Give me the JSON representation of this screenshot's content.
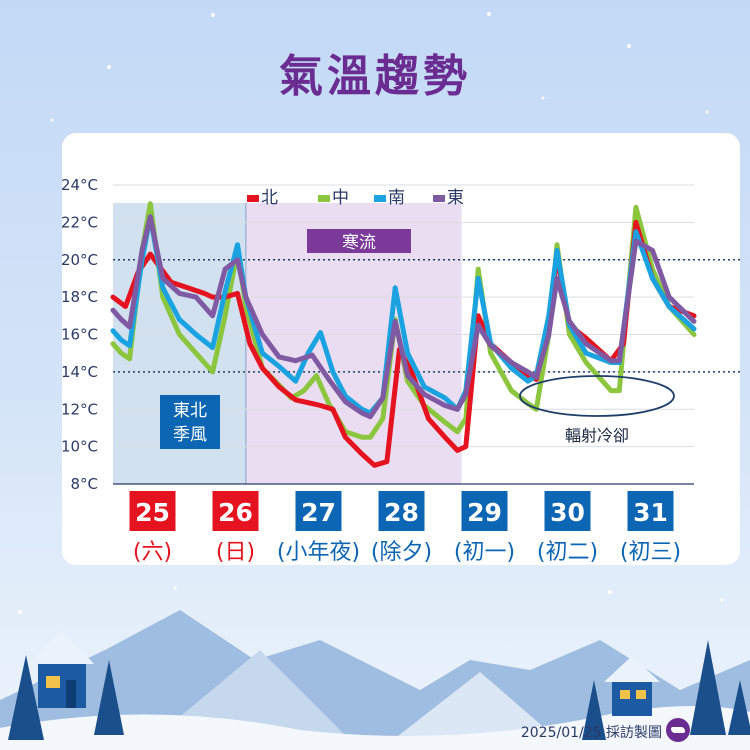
{
  "title": "氣溫趨勢",
  "credit": "2025/01/25 採訪製圖",
  "colors": {
    "north": "#e5131f",
    "central": "#8cc63e",
    "south": "#1aa3e0",
    "east": "#7f5aa2",
    "weekend": "#e5131f",
    "weekday": "#0d66b3",
    "monsoon_band": "#c9dcec",
    "cold_band": "#e6d5ee",
    "cold_label": "#7b3a9a"
  },
  "chart_data": {
    "type": "line",
    "title": "氣溫趨勢",
    "xlabel": "",
    "ylabel": "",
    "ylim": [
      8,
      24
    ],
    "y_ticks": [
      "8°C",
      "10°C",
      "12°C",
      "14°C",
      "16°C",
      "18°C",
      "20°C",
      "22°C",
      "24°C"
    ],
    "x_range": [
      0,
      7
    ],
    "grid": "horizontal",
    "legend_position": "top-center",
    "reference_lines": [
      14,
      20
    ],
    "days": [
      {
        "date": "25",
        "label": "(六)",
        "weekend": true
      },
      {
        "date": "26",
        "label": "(日)",
        "weekend": true
      },
      {
        "date": "27",
        "label": "(小年夜)",
        "weekend": false
      },
      {
        "date": "28",
        "label": "(除夕)",
        "weekend": false
      },
      {
        "date": "29",
        "label": "(初一)",
        "weekend": false
      },
      {
        "date": "30",
        "label": "(初二)",
        "weekend": false
      },
      {
        "date": "31",
        "label": "(初三)",
        "weekend": false
      }
    ],
    "bands": [
      {
        "from": 0,
        "to": 1.6,
        "label_lines": [
          "東北",
          "季風"
        ],
        "kind": "monsoon"
      },
      {
        "from": 1.6,
        "to": 4.2,
        "label": "寒流",
        "kind": "cold"
      }
    ],
    "annotation": {
      "text": "輻射冷卻",
      "x": 5.12,
      "y": 12.6
    },
    "series": [
      {
        "name": "北",
        "key": "north",
        "x": [
          0,
          0.15,
          0.3,
          0.45,
          0.7,
          0.9,
          1.1,
          1.2,
          1.35,
          1.5,
          1.65,
          1.8,
          2.0,
          2.2,
          2.4,
          2.5,
          2.65,
          2.8,
          3.0,
          3.15,
          3.3,
          3.45,
          3.6,
          3.8,
          4.0,
          4.15,
          4.25,
          4.4,
          4.55,
          4.8,
          5.0,
          5.1,
          5.25,
          5.35,
          5.5,
          5.7,
          6.0,
          6.15,
          6.3,
          6.5,
          6.7,
          7.0
        ],
        "y": [
          18.0,
          17.5,
          19.3,
          20.3,
          18.8,
          18.5,
          18.2,
          18.0,
          18.0,
          18.2,
          15.5,
          14.2,
          13.2,
          12.5,
          12.3,
          12.2,
          12.0,
          10.5,
          9.6,
          9.0,
          9.2,
          15.2,
          14.0,
          11.5,
          10.5,
          9.8,
          10.0,
          17.0,
          15.5,
          14.5,
          13.8,
          13.6,
          16.5,
          20.2,
          16.5,
          15.8,
          14.6,
          15.5,
          22.0,
          19.0,
          17.5,
          17.0
        ]
      },
      {
        "name": "中",
        "key": "central",
        "x": [
          0,
          0.1,
          0.2,
          0.35,
          0.45,
          0.6,
          0.8,
          1.0,
          1.2,
          1.35,
          1.5,
          1.6,
          1.8,
          2.0,
          2.15,
          2.3,
          2.45,
          2.6,
          2.8,
          3.0,
          3.1,
          3.25,
          3.4,
          3.55,
          3.75,
          4.0,
          4.15,
          4.25,
          4.4,
          4.55,
          4.8,
          5.0,
          5.1,
          5.25,
          5.35,
          5.5,
          5.7,
          6.0,
          6.1,
          6.3,
          6.5,
          6.7,
          7.0
        ],
        "y": [
          15.5,
          15.0,
          14.7,
          20.5,
          23.0,
          18.0,
          16.0,
          15.0,
          14.0,
          17.0,
          20.5,
          17.5,
          14.2,
          13.3,
          12.6,
          13.0,
          13.8,
          12.3,
          10.8,
          10.5,
          10.5,
          11.5,
          16.8,
          13.5,
          12.2,
          11.3,
          10.8,
          11.5,
          19.5,
          15.0,
          13.0,
          12.3,
          12.0,
          16.0,
          20.8,
          16.0,
          14.5,
          13.0,
          13.0,
          22.8,
          19.5,
          17.5,
          16.0
        ]
      },
      {
        "name": "南",
        "key": "south",
        "x": [
          0,
          0.1,
          0.2,
          0.35,
          0.45,
          0.6,
          0.8,
          1.0,
          1.2,
          1.35,
          1.5,
          1.6,
          1.8,
          2.0,
          2.2,
          2.35,
          2.5,
          2.65,
          2.8,
          3.0,
          3.1,
          3.25,
          3.4,
          3.55,
          3.75,
          4.0,
          4.15,
          4.25,
          4.4,
          4.55,
          4.8,
          5.0,
          5.1,
          5.25,
          5.35,
          5.5,
          5.7,
          6.0,
          6.1,
          6.3,
          6.5,
          6.7,
          7.0
        ],
        "y": [
          16.2,
          15.7,
          15.4,
          20.0,
          22.3,
          18.5,
          16.8,
          16.0,
          15.3,
          18.3,
          20.8,
          18.0,
          15.0,
          14.3,
          13.5,
          15.0,
          16.1,
          14.0,
          12.7,
          12.0,
          11.8,
          12.6,
          18.5,
          15.0,
          13.2,
          12.6,
          12.0,
          13.0,
          19.0,
          15.5,
          14.2,
          13.5,
          13.8,
          17.0,
          20.5,
          16.5,
          15.0,
          14.5,
          14.5,
          21.5,
          19.0,
          17.5,
          16.3
        ]
      },
      {
        "name": "東",
        "key": "east",
        "x": [
          0,
          0.1,
          0.2,
          0.35,
          0.45,
          0.6,
          0.8,
          1.0,
          1.2,
          1.35,
          1.5,
          1.6,
          1.8,
          2.0,
          2.2,
          2.4,
          2.6,
          2.8,
          3.0,
          3.1,
          3.25,
          3.4,
          3.55,
          3.75,
          4.0,
          4.15,
          4.25,
          4.4,
          4.55,
          4.8,
          5.0,
          5.1,
          5.25,
          5.35,
          5.5,
          5.7,
          6.0,
          6.1,
          6.3,
          6.5,
          6.7,
          7.0
        ],
        "y": [
          17.3,
          16.8,
          16.4,
          20.5,
          22.3,
          19.0,
          18.2,
          18.0,
          17.0,
          19.5,
          20.0,
          18.0,
          16.0,
          14.8,
          14.6,
          14.9,
          13.6,
          12.4,
          11.8,
          11.6,
          12.6,
          16.7,
          13.8,
          12.8,
          12.2,
          12.0,
          12.8,
          16.5,
          15.4,
          14.5,
          14.0,
          13.7,
          16.0,
          19.0,
          16.7,
          15.5,
          14.6,
          14.6,
          21.0,
          20.5,
          18.0,
          16.7
        ]
      }
    ]
  }
}
